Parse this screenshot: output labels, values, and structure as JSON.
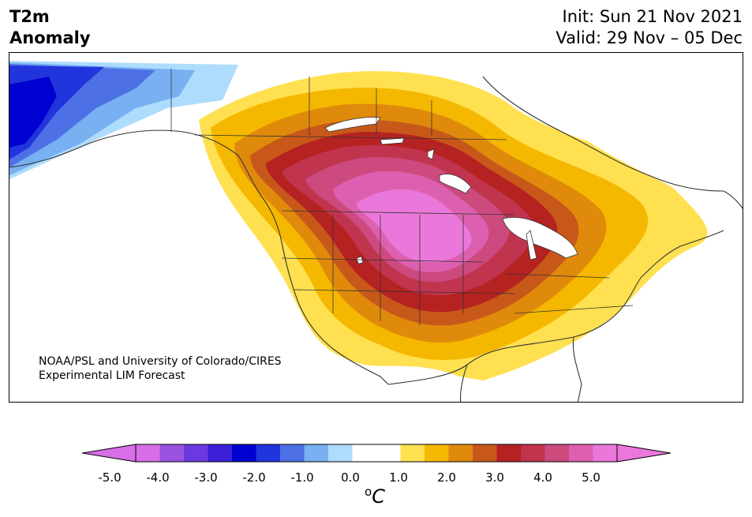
{
  "header": {
    "title_line1": "T2m",
    "title_line2": "Anomaly",
    "init_text": "Init: Sun 21 Nov 2021",
    "valid_text": "Valid: 29 Nov – 05 Dec"
  },
  "credit": {
    "line1": "NOAA/PSL and University of Colorado/CIRES",
    "line2": "Experimental LIM Forecast"
  },
  "colorbar": {
    "unit_super": "o",
    "unit_main": "C",
    "ticks": [
      "-5.0",
      "-4.0",
      "-3.0",
      "-2.0",
      "-1.0",
      "0.0",
      "1.0",
      "2.0",
      "3.0",
      "4.0",
      "5.0"
    ],
    "colors": [
      "#d86ee8",
      "#9a52e0",
      "#6a3ae0",
      "#3a1fd6",
      "#0000d0",
      "#2235dc",
      "#4d70e6",
      "#78b0f2",
      "#aedcfc",
      "#ffffff",
      "#ffffff",
      "#ffe050",
      "#f5b800",
      "#e08a0c",
      "#c8581a",
      "#b52222",
      "#c0344e",
      "#cc4a7e",
      "#dd60b0",
      "#ea78da"
    ],
    "under_color": "#d86ee8",
    "over_color": "#ea78da"
  },
  "map": {
    "anomaly_colors": {
      "neg_light": "#aedcfc",
      "neg_1": "#78b0f2",
      "neg_2": "#4d70e6",
      "neg_3": "#2235dc",
      "neg_4": "#0000d0",
      "pos_1": "#ffe050",
      "pos_2": "#f5b800",
      "pos_3": "#e08a0c",
      "pos_4": "#c8581a",
      "pos_5": "#b52222",
      "pos_6": "#c0344e",
      "pos_7": "#cc4a7e",
      "pos_8": "#dd60b0",
      "pos_9": "#ea78da"
    }
  }
}
